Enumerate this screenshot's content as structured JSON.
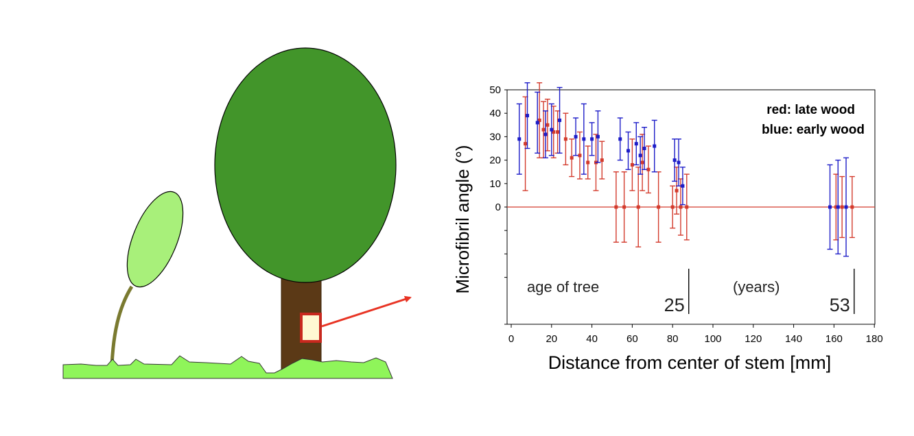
{
  "colors": {
    "red": "#d33a2c",
    "blue": "#1c1cc8",
    "crown": "#42952a",
    "sapling_crown": "#a8f07a",
    "trunk": "#5b3916",
    "ground": "#8ff55a",
    "stem": "#7a7a30",
    "sample_box": "#fff8d2",
    "sample_border": "#c8281e"
  },
  "icons": {
    "tree": "tree-icon",
    "sapling": "sapling-icon",
    "ground": "grass-icon",
    "sample": "sample-box-icon",
    "arrow": "arrow-icon"
  },
  "chart_data": {
    "type": "scatter",
    "title": "",
    "xlabel": "Distance from center of stem [mm]",
    "ylabel": "Microfibril angle (°)",
    "xlim": [
      0,
      180
    ],
    "ylim": [
      0,
      50
    ],
    "x_ticks": [
      0,
      20,
      40,
      60,
      80,
      100,
      120,
      140,
      160,
      180
    ],
    "y_ticks": [
      0,
      10,
      20,
      30,
      40,
      50
    ],
    "legend": {
      "position": "top-right",
      "lines": [
        "red: late wood",
        "blue: early wood"
      ]
    },
    "annotations": {
      "age_label": "age of tree",
      "units_label": "(years)",
      "age_markers": [
        {
          "x": 88,
          "label": "25"
        },
        {
          "x": 170,
          "label": "53"
        }
      ]
    },
    "series": [
      {
        "name": "red: late wood",
        "color": "red",
        "points": [
          {
            "x": 7,
            "y": 27,
            "err": 20
          },
          {
            "x": 14,
            "y": 37,
            "err": 16
          },
          {
            "x": 16,
            "y": 33,
            "err": 12
          },
          {
            "x": 18,
            "y": 35,
            "err": 11
          },
          {
            "x": 21,
            "y": 32,
            "err": 11
          },
          {
            "x": 23,
            "y": 32,
            "err": 9
          },
          {
            "x": 27,
            "y": 29,
            "err": 11
          },
          {
            "x": 30,
            "y": 21,
            "err": 8
          },
          {
            "x": 34,
            "y": 22,
            "err": 10
          },
          {
            "x": 38,
            "y": 19,
            "err": 7
          },
          {
            "x": 42,
            "y": 19,
            "err": 12
          },
          {
            "x": 45,
            "y": 20,
            "err": 8
          },
          {
            "x": 52,
            "y": 0,
            "err": 15
          },
          {
            "x": 56,
            "y": 0,
            "err": 15
          },
          {
            "x": 60,
            "y": 18,
            "err": 11
          },
          {
            "x": 63,
            "y": 0,
            "err": 17
          },
          {
            "x": 65,
            "y": 19,
            "err": 12
          },
          {
            "x": 68,
            "y": 16,
            "err": 10
          },
          {
            "x": 73,
            "y": 0,
            "err": 15
          },
          {
            "x": 80,
            "y": 0,
            "err": 9
          },
          {
            "x": 82,
            "y": 7,
            "err": 10
          },
          {
            "x": 84,
            "y": 0,
            "err": 12
          },
          {
            "x": 87,
            "y": 0,
            "err": 14
          },
          {
            "x": 161,
            "y": 0,
            "err": 14
          },
          {
            "x": 164,
            "y": 0,
            "err": 13
          },
          {
            "x": 169,
            "y": 0,
            "err": 13
          }
        ]
      },
      {
        "name": "blue: early wood",
        "color": "blue",
        "points": [
          {
            "x": 4,
            "y": 29,
            "err": 15
          },
          {
            "x": 8,
            "y": 39,
            "err": 14
          },
          {
            "x": 13,
            "y": 36,
            "err": 13
          },
          {
            "x": 17,
            "y": 31,
            "err": 10
          },
          {
            "x": 20,
            "y": 33,
            "err": 11
          },
          {
            "x": 24,
            "y": 37,
            "err": 14
          },
          {
            "x": 32,
            "y": 30,
            "err": 8
          },
          {
            "x": 36,
            "y": 29,
            "err": 15
          },
          {
            "x": 40,
            "y": 29,
            "err": 7
          },
          {
            "x": 43,
            "y": 30,
            "err": 11
          },
          {
            "x": 54,
            "y": 29,
            "err": 9
          },
          {
            "x": 58,
            "y": 24,
            "err": 8
          },
          {
            "x": 62,
            "y": 27,
            "err": 9
          },
          {
            "x": 64,
            "y": 22,
            "err": 8
          },
          {
            "x": 66,
            "y": 25,
            "err": 9
          },
          {
            "x": 71,
            "y": 26,
            "err": 11
          },
          {
            "x": 81,
            "y": 20,
            "err": 9
          },
          {
            "x": 83,
            "y": 19,
            "err": 10
          },
          {
            "x": 85,
            "y": 9,
            "err": 8
          },
          {
            "x": 158,
            "y": 0,
            "err": 18
          },
          {
            "x": 162,
            "y": 0,
            "err": 20
          },
          {
            "x": 166,
            "y": 0,
            "err": 21
          }
        ]
      }
    ]
  }
}
